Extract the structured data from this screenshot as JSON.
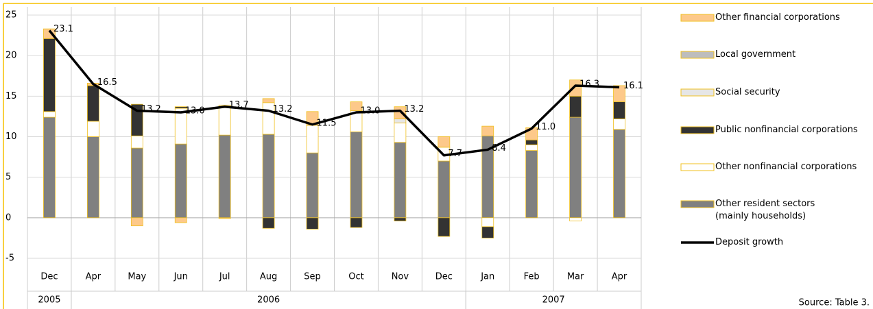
{
  "chart_data": {
    "type": "bar",
    "categories": [
      "Dec",
      "Apr",
      "May",
      "Jun",
      "Jul",
      "Aug",
      "Sep",
      "Oct",
      "Nov",
      "Dec",
      "Jan",
      "Feb",
      "Mar",
      "Apr"
    ],
    "years": [
      "2005",
      "2006",
      null,
      null,
      null,
      null,
      null,
      null,
      null,
      null,
      "2007",
      null,
      null,
      null
    ],
    "ylim": [
      -5,
      25
    ],
    "yticks": [
      -5,
      0,
      5,
      10,
      15,
      20,
      25
    ],
    "grid": true,
    "legend": "right",
    "source": "Source: Table 3.",
    "series": [
      {
        "name": "Other resident sectors\n(mainly households)",
        "type": "bar",
        "color": "#808080",
        "values": [
          12.4,
          10.0,
          8.6,
          9.1,
          10.2,
          10.3,
          8.0,
          10.6,
          9.3,
          7.0,
          10.1,
          8.3,
          12.4,
          10.9
        ]
      },
      {
        "name": "Other nonfinancial corporations",
        "type": "bar",
        "color": "#ffffff",
        "values": [
          0.7,
          1.9,
          1.5,
          4.4,
          3.7,
          3.9,
          3.4,
          2.6,
          2.4,
          1.7,
          -1.1,
          0.7,
          -0.4,
          1.3
        ]
      },
      {
        "name": "Public nonfinancial corporations",
        "type": "bar",
        "color": "#333333",
        "values": [
          9.0,
          4.4,
          3.9,
          0.2,
          0,
          -1.3,
          -1.4,
          -1.2,
          -0.4,
          -2.3,
          -1.4,
          0.6,
          2.6,
          2.1
        ]
      },
      {
        "name": "Social security",
        "type": "bar",
        "color": "#e6e6e6",
        "values": [
          0,
          0,
          0,
          0,
          0,
          0,
          0,
          0,
          0.5,
          0,
          0,
          0,
          0,
          0
        ]
      },
      {
        "name": "Local government",
        "type": "bar",
        "color": "#bdbdbd",
        "values": [
          0,
          0,
          0,
          0,
          0,
          0,
          0,
          0,
          0,
          0,
          0,
          0,
          0,
          0
        ]
      },
      {
        "name": "Other financial corporations",
        "type": "bar",
        "color": "#fdc98a",
        "values": [
          1.2,
          0.3,
          -1.0,
          -0.6,
          -0.1,
          0.5,
          1.7,
          1.1,
          1.5,
          1.3,
          1.2,
          1.5,
          2.0,
          2.0
        ]
      },
      {
        "name": "Deposit growth",
        "type": "line",
        "color": "#000000",
        "values": [
          23.1,
          16.5,
          13.2,
          13.0,
          13.7,
          13.2,
          11.5,
          13.0,
          13.2,
          7.7,
          8.4,
          11.0,
          16.3,
          16.1
        ],
        "value_labels": [
          "23.1",
          "16.5",
          "13.2",
          "13.0",
          "13.7",
          "13.2",
          "11.5",
          "13.0",
          "13.2",
          "7.7",
          "8.4",
          "11.0",
          "16.3",
          "16.1"
        ]
      }
    ]
  }
}
